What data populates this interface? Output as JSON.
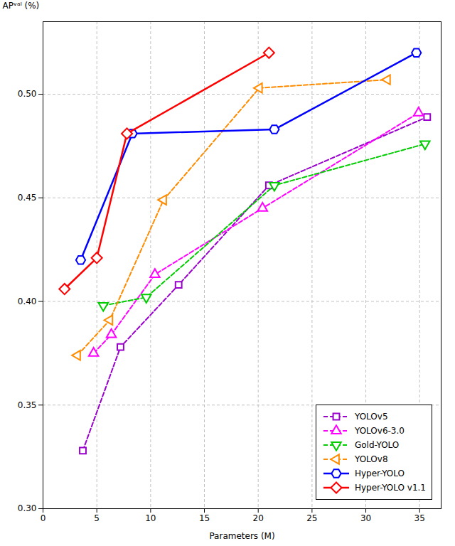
{
  "chart_data": {
    "type": "line",
    "xlabel": "Parameters (M)",
    "ylabel": "APᵛᵃˡ (%)",
    "series": [
      {
        "name": "YOLOv5",
        "color": "#9900CC",
        "line_style": "dashed",
        "marker": "square",
        "x": [
          3.7,
          7.2,
          12.6,
          21.0,
          35.7
        ],
        "values": [
          0.328,
          0.378,
          0.408,
          0.456,
          0.489
        ]
      },
      {
        "name": "YOLOv6-3.0",
        "color": "#FF00FF",
        "line_style": "dashed",
        "marker": "triangle-up",
        "x": [
          4.7,
          6.35,
          10.4,
          20.4,
          34.9
        ],
        "values": [
          0.375,
          0.384,
          0.413,
          0.445,
          0.491
        ]
      },
      {
        "name": "Gold-YOLO",
        "color": "#00CC00",
        "line_style": "dashed",
        "marker": "triangle-down",
        "x": [
          5.6,
          9.6,
          21.5,
          35.5
        ],
        "values": [
          0.398,
          0.402,
          0.456,
          0.476
        ]
      },
      {
        "name": "YOLOv8",
        "color": "#FF8C00",
        "line_style": "dashed",
        "marker": "triangle-left",
        "x": [
          3.2,
          6.2,
          11.2,
          20.1,
          32.0
        ],
        "values": [
          0.374,
          0.391,
          0.449,
          0.503,
          0.507
        ]
      },
      {
        "name": "Hyper-YOLO",
        "color": "#0000FF",
        "line_style": "solid",
        "marker": "hexagon",
        "x": [
          3.5,
          8.3,
          21.5,
          34.7
        ],
        "values": [
          0.42,
          0.481,
          0.483,
          0.52
        ]
      },
      {
        "name": "Hyper-YOLO v1.1",
        "color": "#FF0000",
        "line_style": "solid",
        "marker": "diamond",
        "x": [
          2.0,
          5.0,
          7.8,
          21.0
        ],
        "values": [
          0.406,
          0.421,
          0.481,
          0.52
        ]
      }
    ],
    "xlim": [
      0,
      37
    ],
    "ylim": [
      0.3,
      0.535
    ],
    "xticks": [
      0,
      5,
      10,
      15,
      20,
      25,
      30,
      35
    ],
    "yticks": [
      {
        "value": 0.3,
        "label": "0.30"
      },
      0.35,
      {
        "value": 0.4,
        "label": "0.40"
      },
      0.45,
      {
        "value": 0.5,
        "label": "0.50"
      }
    ],
    "grid": true,
    "legend": "lower right"
  }
}
